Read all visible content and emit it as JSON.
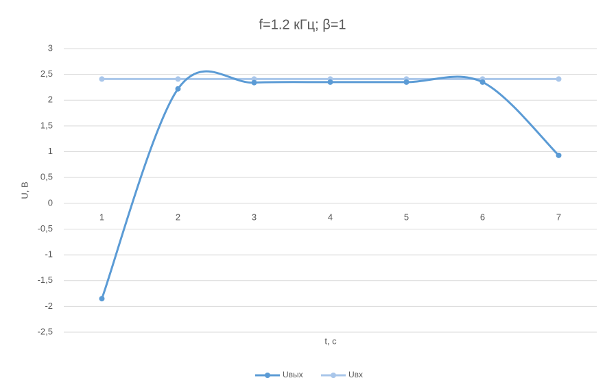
{
  "chart_data": {
    "type": "line",
    "title": "f=1.2 кГц; β=1",
    "x_label": "t, с",
    "y_label": "U, В",
    "categories": [
      "1",
      "2",
      "3",
      "4",
      "5",
      "6",
      "7"
    ],
    "series": [
      {
        "name": "Uвых",
        "color": "#5b9bd5",
        "values": [
          -1.85,
          2.22,
          2.34,
          2.35,
          2.35,
          2.35,
          0.93
        ]
      },
      {
        "name": "Uвх",
        "color": "#a9c6ea",
        "values": [
          2.41,
          2.41,
          2.41,
          2.41,
          2.41,
          2.41,
          2.41
        ]
      }
    ],
    "smooth": true,
    "grid": true,
    "legend": "bottom",
    "ylim": [
      -2.5,
      3
    ],
    "yticks": [
      3,
      {
        "value": 2.5,
        "label": "2,5"
      },
      2,
      {
        "value": 1.5,
        "label": "1,5"
      },
      1,
      {
        "value": 0.5,
        "label": "0,5"
      },
      0,
      {
        "value": -0.5,
        "label": "-0,5"
      },
      -1,
      {
        "value": -1.5,
        "label": "-1,5"
      },
      -2,
      {
        "value": -2.5,
        "label": "-2,5"
      }
    ]
  }
}
